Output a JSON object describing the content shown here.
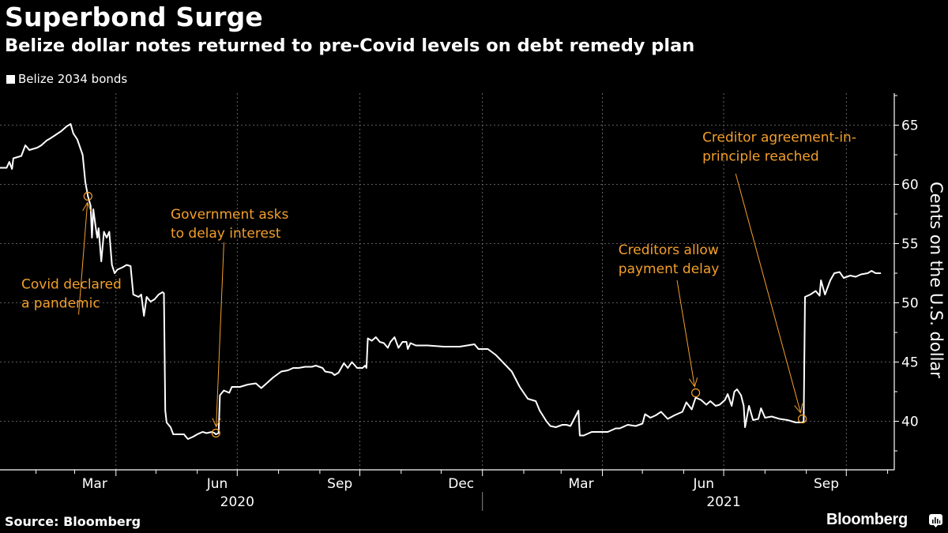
{
  "header": {
    "title": "Superbond Surge",
    "subtitle": "Belize dollar notes returned to pre-Covid levels on debt remedy plan"
  },
  "footer": {
    "source": "Source: Bloomberg",
    "brand": "Bloomberg",
    "brand_icon": "bloomberg-chart-icon"
  },
  "colors": {
    "background": "#000000",
    "line": "#ffffff",
    "annotation": "#f39f2b",
    "grid": "#7a7a7a"
  },
  "chart_data": {
    "type": "line",
    "title": "Superbond Surge",
    "subtitle": "Belize dollar notes returned to pre-Covid levels on debt remedy plan",
    "xlabel": "",
    "ylabel": "Cents on the U.S. dollar",
    "y_axis_side": "right",
    "ylim": [
      35.9,
      67.7
    ],
    "yticks": [
      40,
      45,
      50,
      55,
      60,
      65
    ],
    "xlim": [
      "2020-01-05",
      "2021-11-06"
    ],
    "xticks": [
      {
        "label": "Mar",
        "date": "2020-03-01"
      },
      {
        "label": "Jun",
        "date": "2020-06-01"
      },
      {
        "label": "Sep",
        "date": "2020-09-01"
      },
      {
        "label": "Dec",
        "date": "2020-12-01"
      },
      {
        "label": "Mar",
        "date": "2021-03-01"
      },
      {
        "label": "Jun",
        "date": "2021-06-01"
      },
      {
        "label": "Sep",
        "date": "2021-09-01"
      }
    ],
    "year_labels": [
      {
        "label": "2020",
        "date": "2020-07-01"
      },
      {
        "label": "2021",
        "date": "2021-07-01"
      }
    ],
    "grid": true,
    "legend": {
      "position": "top-left",
      "entries": [
        "Belize 2034 bonds"
      ]
    },
    "series": [
      {
        "name": "Belize 2034 bonds",
        "points": [
          [
            "2020-01-05",
            61.4
          ],
          [
            "2020-01-10",
            61.4
          ],
          [
            "2020-01-12",
            61.9
          ],
          [
            "2020-01-14",
            61.3
          ],
          [
            "2020-01-15",
            62.2
          ],
          [
            "2020-01-21",
            62.4
          ],
          [
            "2020-01-24",
            63.3
          ],
          [
            "2020-01-27",
            62.9
          ],
          [
            "2020-02-02",
            63.1
          ],
          [
            "2020-02-05",
            63.3
          ],
          [
            "2020-02-09",
            63.7
          ],
          [
            "2020-02-12",
            63.9
          ],
          [
            "2020-02-16",
            64.2
          ],
          [
            "2020-02-20",
            64.5
          ],
          [
            "2020-02-24",
            64.9
          ],
          [
            "2020-02-27",
            65.1
          ],
          [
            "2020-02-29",
            64.3
          ],
          [
            "2020-03-03",
            63.8
          ],
          [
            "2020-03-07",
            62.5
          ],
          [
            "2020-03-09",
            60.2
          ],
          [
            "2020-03-11",
            59.0
          ],
          [
            "2020-03-13",
            58.2
          ],
          [
            "2020-03-14",
            55.5
          ],
          [
            "2020-03-15",
            57.9
          ],
          [
            "2020-03-17",
            56.2
          ],
          [
            "2020-03-18",
            55.5
          ],
          [
            "2020-03-19",
            56.3
          ],
          [
            "2020-03-21",
            53.5
          ],
          [
            "2020-03-23",
            56.0
          ],
          [
            "2020-03-25",
            55.5
          ],
          [
            "2020-03-27",
            56.0
          ],
          [
            "2020-03-29",
            53.2
          ],
          [
            "2020-03-31",
            52.5
          ],
          [
            "2020-04-02",
            52.8
          ],
          [
            "2020-04-06",
            53.0
          ],
          [
            "2020-04-09",
            53.2
          ],
          [
            "2020-04-12",
            53.1
          ],
          [
            "2020-04-14",
            50.7
          ],
          [
            "2020-04-18",
            50.5
          ],
          [
            "2020-04-20",
            50.7
          ],
          [
            "2020-04-22",
            48.9
          ],
          [
            "2020-04-24",
            50.5
          ],
          [
            "2020-04-27",
            50.1
          ],
          [
            "2020-04-30",
            50.3
          ],
          [
            "2020-05-03",
            50.7
          ],
          [
            "2020-05-06",
            50.9
          ],
          [
            "2020-05-07",
            50.8
          ],
          [
            "2020-05-08",
            40.9
          ],
          [
            "2020-05-09",
            39.9
          ],
          [
            "2020-05-12",
            39.5
          ],
          [
            "2020-05-14",
            38.9
          ],
          [
            "2020-05-18",
            38.9
          ],
          [
            "2020-05-22",
            38.9
          ],
          [
            "2020-05-25",
            38.5
          ],
          [
            "2020-05-29",
            38.7
          ],
          [
            "2020-06-01",
            38.9
          ],
          [
            "2020-06-05",
            39.1
          ],
          [
            "2020-06-08",
            39.0
          ],
          [
            "2020-06-12",
            39.1
          ],
          [
            "2020-06-14",
            39.0
          ],
          [
            "2020-06-15",
            38.9
          ],
          [
            "2020-06-17",
            39.0
          ],
          [
            "2020-06-18",
            42.2
          ],
          [
            "2020-06-21",
            42.6
          ],
          [
            "2020-06-25",
            42.4
          ],
          [
            "2020-06-27",
            42.9
          ],
          [
            "2020-07-03",
            42.9
          ],
          [
            "2020-07-09",
            43.1
          ],
          [
            "2020-07-15",
            43.2
          ],
          [
            "2020-07-19",
            42.8
          ],
          [
            "2020-07-24",
            43.3
          ],
          [
            "2020-07-28",
            43.7
          ],
          [
            "2020-08-03",
            44.2
          ],
          [
            "2020-08-08",
            44.3
          ],
          [
            "2020-08-12",
            44.5
          ],
          [
            "2020-08-16",
            44.5
          ],
          [
            "2020-08-21",
            44.6
          ],
          [
            "2020-08-26",
            44.6
          ],
          [
            "2020-08-29",
            44.7
          ],
          [
            "2020-09-03",
            44.5
          ],
          [
            "2020-09-05",
            44.2
          ],
          [
            "2020-09-10",
            44.1
          ],
          [
            "2020-09-12",
            43.9
          ],
          [
            "2020-09-15",
            44.1
          ],
          [
            "2020-09-19",
            44.9
          ],
          [
            "2020-09-22",
            44.5
          ],
          [
            "2020-09-25",
            45.0
          ],
          [
            "2020-09-29",
            44.5
          ],
          [
            "2020-10-03",
            44.5
          ],
          [
            "2020-10-05",
            44.7
          ],
          [
            "2020-10-06",
            44.5
          ],
          [
            "2020-10-07",
            47.0
          ],
          [
            "2020-10-10",
            46.8
          ],
          [
            "2020-10-13",
            47.1
          ],
          [
            "2020-10-16",
            46.7
          ],
          [
            "2020-10-19",
            46.6
          ],
          [
            "2020-10-22",
            46.2
          ],
          [
            "2020-10-24",
            46.7
          ],
          [
            "2020-10-27",
            47.1
          ],
          [
            "2020-10-30",
            46.2
          ],
          [
            "2020-11-02",
            46.7
          ],
          [
            "2020-11-05",
            46.7
          ],
          [
            "2020-11-06",
            46.1
          ],
          [
            "2020-11-08",
            46.6
          ],
          [
            "2020-11-12",
            46.4
          ],
          [
            "2020-11-21",
            46.4
          ],
          [
            "2020-12-03",
            46.3
          ],
          [
            "2020-12-15",
            46.3
          ],
          [
            "2020-12-26",
            46.5
          ],
          [
            "2020-12-29",
            46.1
          ],
          [
            "2021-01-05",
            46.1
          ],
          [
            "2021-01-11",
            45.6
          ],
          [
            "2021-01-17",
            44.9
          ],
          [
            "2021-01-23",
            44.2
          ],
          [
            "2021-01-29",
            42.9
          ],
          [
            "2021-02-04",
            41.9
          ],
          [
            "2021-02-10",
            41.7
          ],
          [
            "2021-02-13",
            40.9
          ],
          [
            "2021-02-18",
            40.0
          ],
          [
            "2021-02-21",
            39.6
          ],
          [
            "2021-02-25",
            39.5
          ],
          [
            "2021-03-02",
            39.7
          ],
          [
            "2021-03-05",
            39.7
          ],
          [
            "2021-03-08",
            39.6
          ],
          [
            "2021-03-14",
            40.9
          ],
          [
            "2021-03-15",
            38.8
          ],
          [
            "2021-03-18",
            38.8
          ],
          [
            "2021-03-24",
            39.1
          ],
          [
            "2021-03-30",
            39.1
          ],
          [
            "2021-04-05",
            39.1
          ],
          [
            "2021-04-11",
            39.4
          ],
          [
            "2021-04-14",
            39.4
          ],
          [
            "2021-04-20",
            39.7
          ],
          [
            "2021-04-26",
            39.6
          ],
          [
            "2021-05-01",
            39.8
          ],
          [
            "2021-05-03",
            40.6
          ],
          [
            "2021-05-07",
            40.3
          ],
          [
            "2021-05-11",
            40.5
          ],
          [
            "2021-05-15",
            40.8
          ],
          [
            "2021-05-20",
            40.2
          ],
          [
            "2021-05-25",
            40.5
          ],
          [
            "2021-05-31",
            40.8
          ],
          [
            "2021-06-03",
            41.6
          ],
          [
            "2021-06-07",
            41.0
          ],
          [
            "2021-06-10",
            42.0
          ],
          [
            "2021-06-14",
            41.8
          ],
          [
            "2021-06-18",
            41.4
          ],
          [
            "2021-06-21",
            41.7
          ],
          [
            "2021-06-25",
            41.3
          ],
          [
            "2021-06-28",
            41.4
          ],
          [
            "2021-07-02",
            41.8
          ],
          [
            "2021-07-04",
            42.3
          ],
          [
            "2021-07-07",
            41.3
          ],
          [
            "2021-07-09",
            42.5
          ],
          [
            "2021-07-11",
            42.7
          ],
          [
            "2021-07-14",
            42.2
          ],
          [
            "2021-07-16",
            41.3
          ],
          [
            "2021-07-17",
            39.5
          ],
          [
            "2021-07-20",
            41.3
          ],
          [
            "2021-07-23",
            40.1
          ],
          [
            "2021-07-27",
            40.2
          ],
          [
            "2021-07-29",
            41.1
          ],
          [
            "2021-08-01",
            40.3
          ],
          [
            "2021-08-06",
            40.4
          ],
          [
            "2021-08-12",
            40.2
          ],
          [
            "2021-08-18",
            40.1
          ],
          [
            "2021-08-24",
            39.9
          ],
          [
            "2021-08-27",
            39.9
          ],
          [
            "2021-08-30",
            39.9
          ],
          [
            "2021-08-31",
            50.5
          ],
          [
            "2021-09-04",
            50.7
          ],
          [
            "2021-09-08",
            51.0
          ],
          [
            "2021-09-11",
            50.6
          ],
          [
            "2021-09-12",
            51.9
          ],
          [
            "2021-09-15",
            50.7
          ],
          [
            "2021-09-19",
            51.9
          ],
          [
            "2021-09-22",
            52.5
          ],
          [
            "2021-09-26",
            52.6
          ],
          [
            "2021-09-29",
            52.1
          ],
          [
            "2021-10-04",
            52.3
          ],
          [
            "2021-10-08",
            52.2
          ],
          [
            "2021-10-12",
            52.4
          ],
          [
            "2021-10-17",
            52.5
          ],
          [
            "2021-10-20",
            52.7
          ],
          [
            "2021-10-23",
            52.5
          ],
          [
            "2021-10-27",
            52.5
          ]
        ]
      }
    ],
    "annotations": [
      {
        "text_lines": [
          "Covid declared",
          "a pandemic"
        ],
        "point": [
          "2020-03-11",
          59.0
        ],
        "label_anchor": [
          "2020-01-21",
          51.2
        ],
        "arrow_from": [
          "2020-03-04",
          49.0
        ]
      },
      {
        "text_lines": [
          "Government asks",
          "to delay interest"
        ],
        "point": [
          "2020-06-15",
          39.0
        ],
        "label_anchor": [
          "2020-05-12",
          57.1
        ],
        "arrow_from": [
          "2020-06-21",
          55.1
        ]
      },
      {
        "text_lines": [
          "Creditors allow",
          "payment delay"
        ],
        "point": [
          "2021-06-10",
          42.4
        ],
        "label_anchor": [
          "2021-04-13",
          54.1
        ],
        "arrow_from": [
          "2021-05-27",
          51.9
        ]
      },
      {
        "text_lines": [
          "Creditor agreement-in-",
          "principle reached"
        ],
        "point": [
          "2021-08-29",
          40.2
        ],
        "label_anchor": [
          "2021-06-15",
          63.6
        ],
        "arrow_from": [
          "2021-07-10",
          60.9
        ]
      }
    ]
  }
}
